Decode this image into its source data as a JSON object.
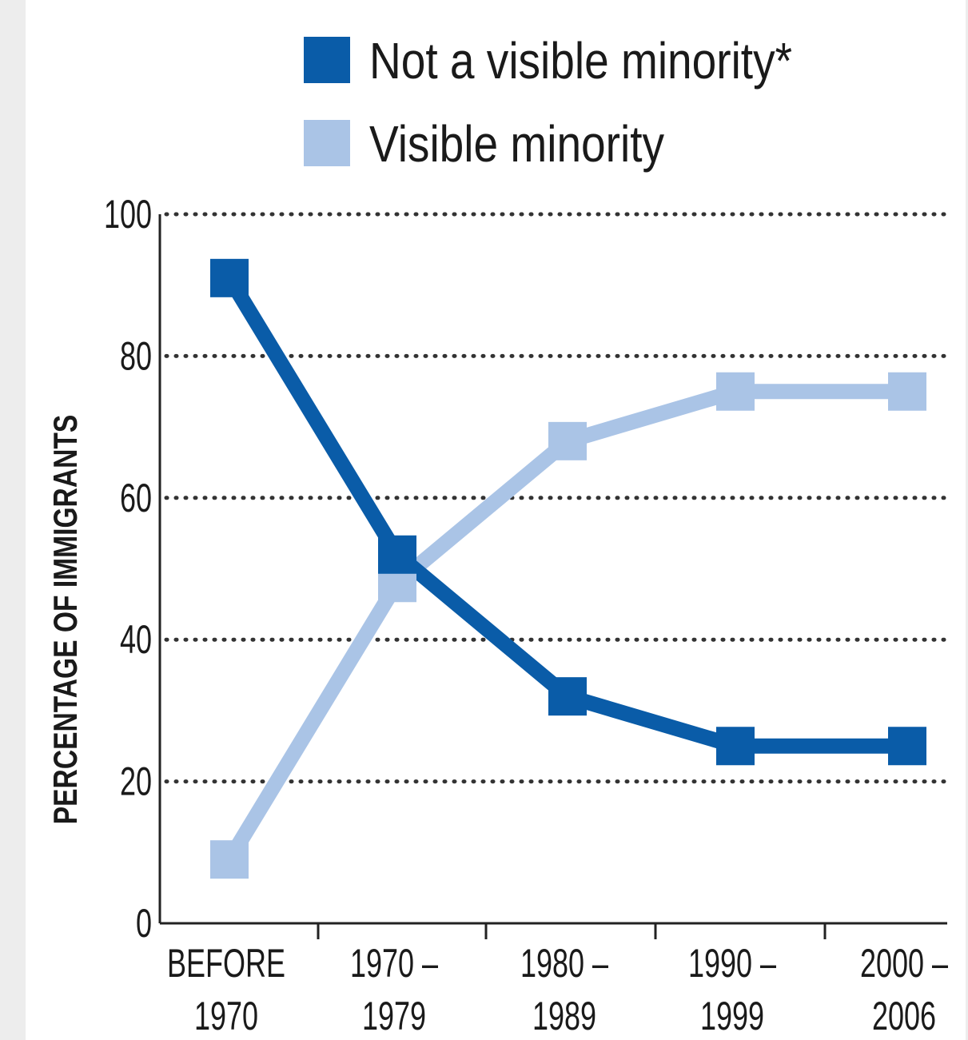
{
  "chart_data": {
    "type": "line",
    "title": "",
    "xlabel": "",
    "ylabel": "PERCENTAGE OF IMMIGRANTS",
    "categories": [
      [
        "BEFORE",
        "1970"
      ],
      [
        "1970 –",
        "1979"
      ],
      [
        "1980 –",
        "1989"
      ],
      [
        "1990 –",
        "1999"
      ],
      [
        "2000 –",
        "2006"
      ]
    ],
    "ylim": [
      0,
      100
    ],
    "yticks": [
      0,
      20,
      40,
      60,
      80,
      100
    ],
    "grid": "horizontal dotted",
    "legend_position": "top-right",
    "series": [
      {
        "name": "Not a visible minority*",
        "color": "#0a5ca8",
        "values": [
          91,
          52,
          32,
          25,
          25
        ]
      },
      {
        "name": "Visible minority",
        "color": "#aac4e6",
        "values": [
          9,
          48,
          68,
          75,
          75
        ]
      }
    ]
  }
}
